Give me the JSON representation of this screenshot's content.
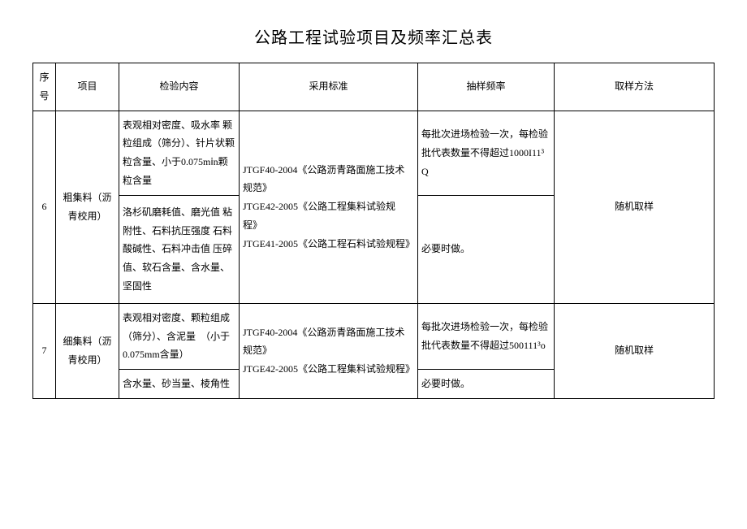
{
  "title": "公路工程试验项目及频率汇总表",
  "headers": {
    "seq": "序号",
    "item": "项目",
    "content": "检验内容",
    "standard": "采用标准",
    "freq": "抽样频率",
    "method": "取样方法"
  },
  "rows": [
    {
      "seq": "6",
      "item": "粗集料（沥青校用）",
      "content_a": "表观相对密度、吸水率 颗粒组成（筛分）、针片状颗粒含量、小于0.075mⅰn颗粒含量",
      "content_b": "洛杉矶磨耗值、磨光值 粘附性、石料抗压强度 石料酸碱性、石料冲击值 压碎值、软石含量、含水量、坚固性",
      "standard": "JTGF40-2004《公路沥青路面施工技术规范》\nJTGE42-2005《公路工程集料试验规程》\nJTGE41-2005《公路工程石料试验规程》",
      "freq_a": "每批次进场检验一次，每检验批代表数量不得超过1000I11³Q",
      "freq_b": "必要时做。",
      "method": "随机取样"
    },
    {
      "seq": "7",
      "item": "细集料（沥青校用）",
      "content_a": "表观相对密度、颗粒组成（筛分）、含泥量　（小于0.075mm含量）",
      "content_b": "含水量、砂当量、棱角性",
      "standard": "JTGF40-2004《公路沥青路面施工技术规范》\nJTGE42-2005《公路工程集料试验规程》",
      "freq_a": "每批次进场检验一次，每检验批代表数量不得超过500111³o",
      "freq_b": "必要时做。",
      "method": "随机取样"
    }
  ]
}
